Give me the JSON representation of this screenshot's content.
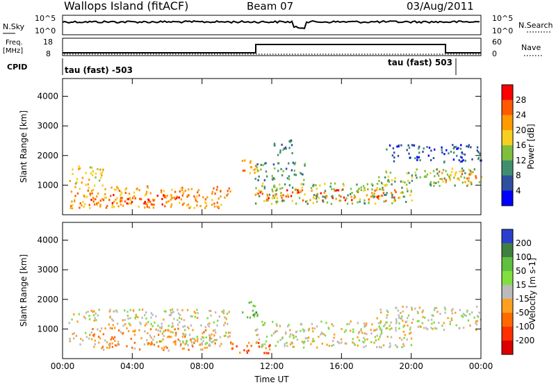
{
  "header": {
    "station": "Wallops Island (fitACF)",
    "beam": "Beam 07",
    "date": "03/Aug/2011"
  },
  "top_panels": {
    "nsky_label": "N.Sky",
    "nsky_ticks": [
      "10^5",
      "10^0"
    ],
    "nsearch_label": "N.Search",
    "nsearch_ticks": [
      "10^5",
      "10^0"
    ],
    "freq_label_line1": "Freq.",
    "freq_label_line2": "[MHz]",
    "freq_ticks": [
      "18",
      "8"
    ],
    "nave_label": "Nave",
    "nave_ticks": [
      "60",
      "0"
    ],
    "cpid_label": "CPID",
    "cpid_left": "tau (fast) -503",
    "cpid_right": "tau (fast) 503"
  },
  "chart_data": [
    {
      "type": "heatmap",
      "title": "",
      "ylabel": "Slant Range [km]",
      "y_ticks": [
        "1000",
        "2000",
        "3000",
        "4000"
      ],
      "ylim": [
        0,
        4600
      ],
      "colorbar_label": "Power [dB]",
      "colorbar_ticks": [
        "28",
        "24",
        "20",
        "16",
        "12",
        "8",
        "4"
      ],
      "colorbar_colors": [
        "#ff0000",
        "#ff5a00",
        "#ff9a00",
        "#f7cf20",
        "#7fbf3f",
        "#3f8f6f",
        "#2f4f9f",
        "#0000ff"
      ],
      "series_description": "Backscatter echo power vs time and slant range",
      "regions": [
        {
          "t0": 0.3,
          "t1": 2.3,
          "r0": 1000,
          "r1": 1700,
          "level": 4
        },
        {
          "t0": 0.4,
          "t1": 9.6,
          "r0": 250,
          "r1": 1000,
          "level": 5
        },
        {
          "t0": 1.5,
          "t1": 7.0,
          "r0": 300,
          "r1": 700,
          "level": 6
        },
        {
          "t0": 10.2,
          "t1": 11.2,
          "r0": 1300,
          "r1": 1900,
          "level": 5
        },
        {
          "t0": 11.0,
          "t1": 19.5,
          "r0": 500,
          "r1": 900,
          "level": 6
        },
        {
          "t0": 11.0,
          "t1": 20.0,
          "r0": 400,
          "r1": 1100,
          "level": 3
        },
        {
          "t0": 18.0,
          "t1": 24.0,
          "r0": 1000,
          "r1": 1600,
          "level": 3
        },
        {
          "t0": 21.5,
          "t1": 24.0,
          "r0": 1100,
          "r1": 1500,
          "level": 5
        },
        {
          "t0": 11.0,
          "t1": 14.0,
          "r0": 1200,
          "r1": 1800,
          "level": 2
        },
        {
          "t0": 18.5,
          "t1": 24.0,
          "r0": 1800,
          "r1": 2400,
          "level": 1
        },
        {
          "t0": 12.0,
          "t1": 13.2,
          "r0": 2000,
          "r1": 2600,
          "level": 2
        }
      ]
    },
    {
      "type": "heatmap",
      "title": "",
      "ylabel": "Slant Range [km]",
      "xlabel": "Time UT",
      "x_ticks": [
        "00:00",
        "04:00",
        "08:00",
        "12:00",
        "16:00",
        "20:00",
        "00:00"
      ],
      "y_ticks": [
        "1000",
        "2000",
        "3000",
        "4000"
      ],
      "ylim": [
        0,
        4600
      ],
      "xlim": [
        0,
        24
      ],
      "colorbar_label": "Velocity [m s-1]",
      "colorbar_ticks": [
        "200",
        "100",
        "50",
        "15",
        "-15",
        "-50",
        "-100",
        "-200"
      ],
      "colorbar_colors": [
        "#2b3fcf",
        "#3f7f3f",
        "#5fbf3f",
        "#7fdf3f",
        "#bbbbbb",
        "#ff9f20",
        "#ff6a00",
        "#ff3000",
        "#dd0000"
      ],
      "series_description": "Doppler velocity vs time and slant range",
      "regions": [
        {
          "t0": 0.3,
          "t1": 9.6,
          "r0": 1100,
          "r1": 1700,
          "level": 4
        },
        {
          "t0": 1.5,
          "t1": 9.0,
          "r0": 300,
          "r1": 1100,
          "level": 5
        },
        {
          "t0": 5.0,
          "t1": 9.6,
          "r0": 500,
          "r1": 1000,
          "level": 4
        },
        {
          "t0": 0.3,
          "t1": 1.5,
          "r0": 500,
          "r1": 900,
          "level": 4
        },
        {
          "t0": 11.0,
          "t1": 20.0,
          "r0": 400,
          "r1": 1300,
          "level": 4
        },
        {
          "t0": 18.0,
          "t1": 24.0,
          "r0": 1000,
          "r1": 1800,
          "level": 4
        },
        {
          "t0": 10.2,
          "t1": 11.2,
          "r0": 1400,
          "r1": 2000,
          "level": 2
        },
        {
          "t0": 9.6,
          "t1": 12.0,
          "r0": 200,
          "r1": 600,
          "level": 6
        }
      ]
    }
  ]
}
